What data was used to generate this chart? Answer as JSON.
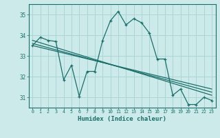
{
  "xlabel": "Humidex (Indice chaleur)",
  "background_color": "#cceaea",
  "grid_color": "#aad4d4",
  "line_color": "#1a6e6a",
  "xlim": [
    -0.5,
    23.5
  ],
  "ylim": [
    30.5,
    35.5
  ],
  "yticks": [
    31,
    32,
    33,
    34,
    35
  ],
  "xticks": [
    0,
    1,
    2,
    3,
    4,
    5,
    6,
    7,
    8,
    9,
    10,
    11,
    12,
    13,
    14,
    15,
    16,
    17,
    18,
    19,
    20,
    21,
    22,
    23
  ],
  "series1": [
    33.5,
    33.9,
    33.75,
    33.7,
    31.85,
    32.55,
    31.05,
    32.25,
    32.25,
    33.75,
    34.7,
    35.15,
    34.5,
    34.8,
    34.6,
    34.1,
    32.85,
    32.85,
    31.1,
    31.4,
    30.65,
    30.65,
    31.0,
    30.85
  ],
  "series2_x": [
    0,
    23
  ],
  "series2_y": [
    33.75,
    31.1
  ],
  "series3_x": [
    0,
    23
  ],
  "series3_y": [
    33.6,
    31.25
  ],
  "series4_x": [
    0,
    23
  ],
  "series4_y": [
    33.5,
    31.4
  ]
}
